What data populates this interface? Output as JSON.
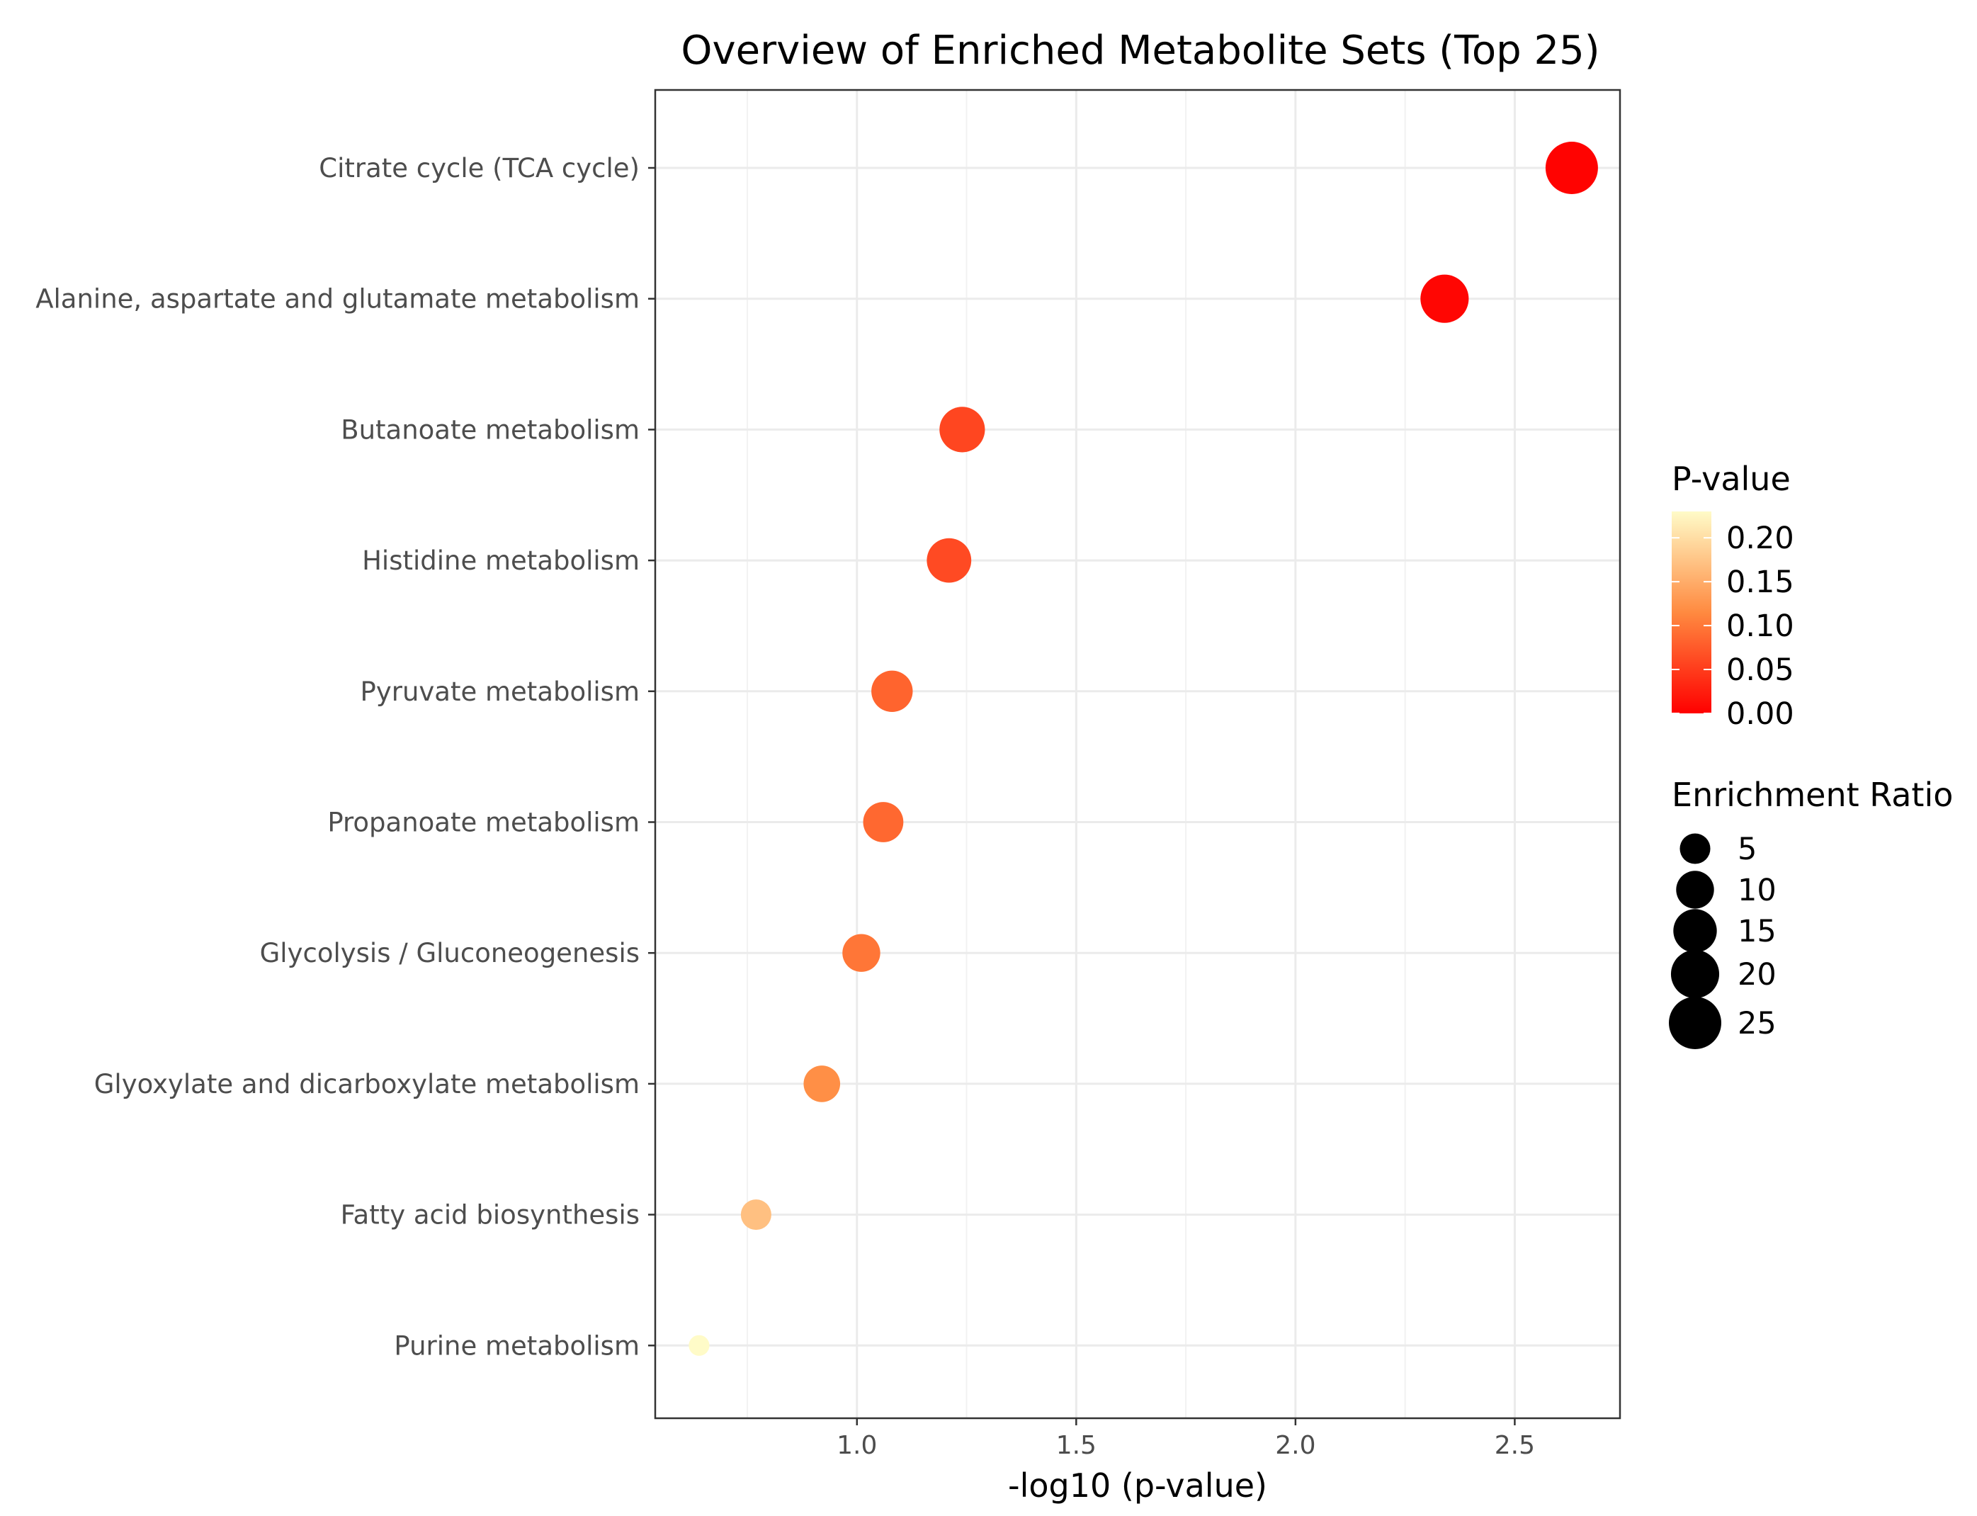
{
  "chart_data": {
    "type": "scatter",
    "title": "Overview of Enriched Metabolite Sets (Top 25)",
    "xlabel": "-log10 (p-value)",
    "ylabel": "",
    "xlim": [
      0.54,
      2.74
    ],
    "xticks": [
      1.0,
      1.5,
      2.0,
      2.5
    ],
    "xtick_labels": [
      "1.0",
      "1.5",
      "2.0",
      "2.5"
    ],
    "grid": true,
    "categories": [
      "Citrate cycle (TCA cycle)",
      "Alanine, aspartate and glutamate metabolism",
      "Butanoate metabolism",
      "Histidine metabolism",
      "Pyruvate metabolism",
      "Propanoate metabolism",
      "Glycolysis / Gluconeogenesis",
      "Glyoxylate and dicarboxylate metabolism",
      "Fatty acid biosynthesis",
      "Purine metabolism"
    ],
    "x": [
      2.63,
      2.34,
      1.24,
      1.21,
      1.08,
      1.06,
      1.01,
      0.92,
      0.77,
      0.64
    ],
    "p_value": [
      0.0023,
      0.0046,
      0.058,
      0.062,
      0.083,
      0.087,
      0.098,
      0.12,
      0.17,
      0.23
    ],
    "enrichment_ratio": [
      25,
      20,
      17,
      16,
      13,
      12,
      10,
      9,
      5,
      1
    ],
    "color_legend": {
      "title": "P-value",
      "labels": [
        "0.20",
        "0.15",
        "0.10",
        "0.05",
        "0.00"
      ],
      "values": [
        0.2,
        0.15,
        0.1,
        0.05,
        0.0
      ],
      "range": [
        0.0,
        0.23
      ],
      "low_color": "#ff0000",
      "mid_color": "#ff8a40",
      "high_color": "#fffbc8"
    },
    "size_legend": {
      "title": "Enrichment Ratio",
      "labels": [
        "5",
        "10",
        "15",
        "20",
        "25"
      ],
      "values": [
        5,
        10,
        15,
        20,
        25
      ]
    },
    "legend_position": "right"
  }
}
